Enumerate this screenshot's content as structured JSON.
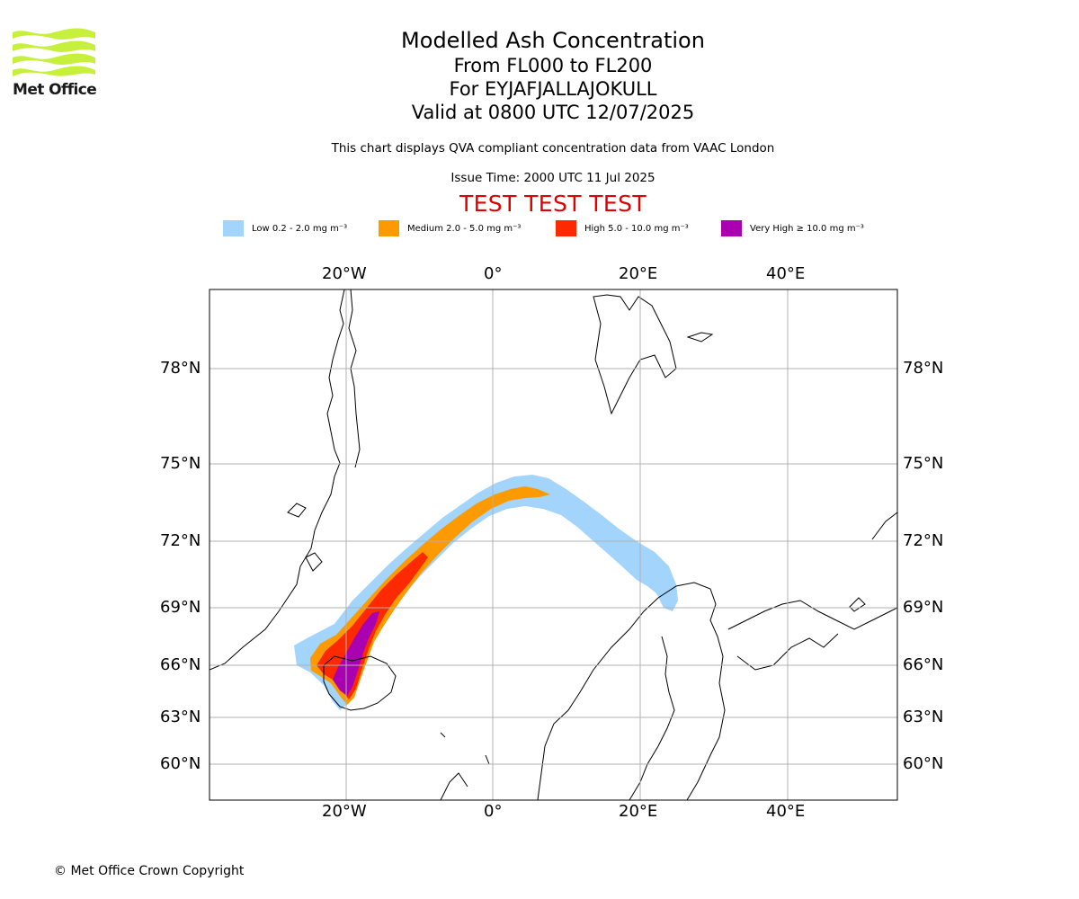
{
  "header": {
    "logo_text": "Met Office",
    "title": "Modelled Ash Concentration",
    "levels": "From FL000 to FL200",
    "volcano": "For EYJAFJALLAJOKULL",
    "valid": "Valid at 0800 UTC 12/07/2025",
    "subtitle": "This chart displays QVA compliant concentration data from VAAC London",
    "issue_time": "Issue Time: 2000 UTC 11 Jul 2025",
    "test_banner": "TEST TEST TEST"
  },
  "legend": [
    {
      "label": "Low 0.2 - 2.0 mg m⁻³",
      "color": "#a3d4fb"
    },
    {
      "label": "Medium 2.0 - 5.0 mg m⁻³",
      "color": "#fd9a00"
    },
    {
      "label": "High 5.0 - 10.0 mg m⁻³",
      "color": "#fd2a00"
    },
    {
      "label": "Very High ≥ 10.0 mg m⁻³",
      "color": "#a900b1"
    }
  ],
  "map": {
    "lon_ticks": [
      "20°W",
      "0°",
      "20°E",
      "40°E"
    ],
    "lat_ticks": [
      "78°N",
      "75°N",
      "72°N",
      "69°N",
      "66°N",
      "63°N",
      "60°N"
    ],
    "gridlines": true
  },
  "footer": {
    "copyright": "© Met Office Crown Copyright"
  }
}
